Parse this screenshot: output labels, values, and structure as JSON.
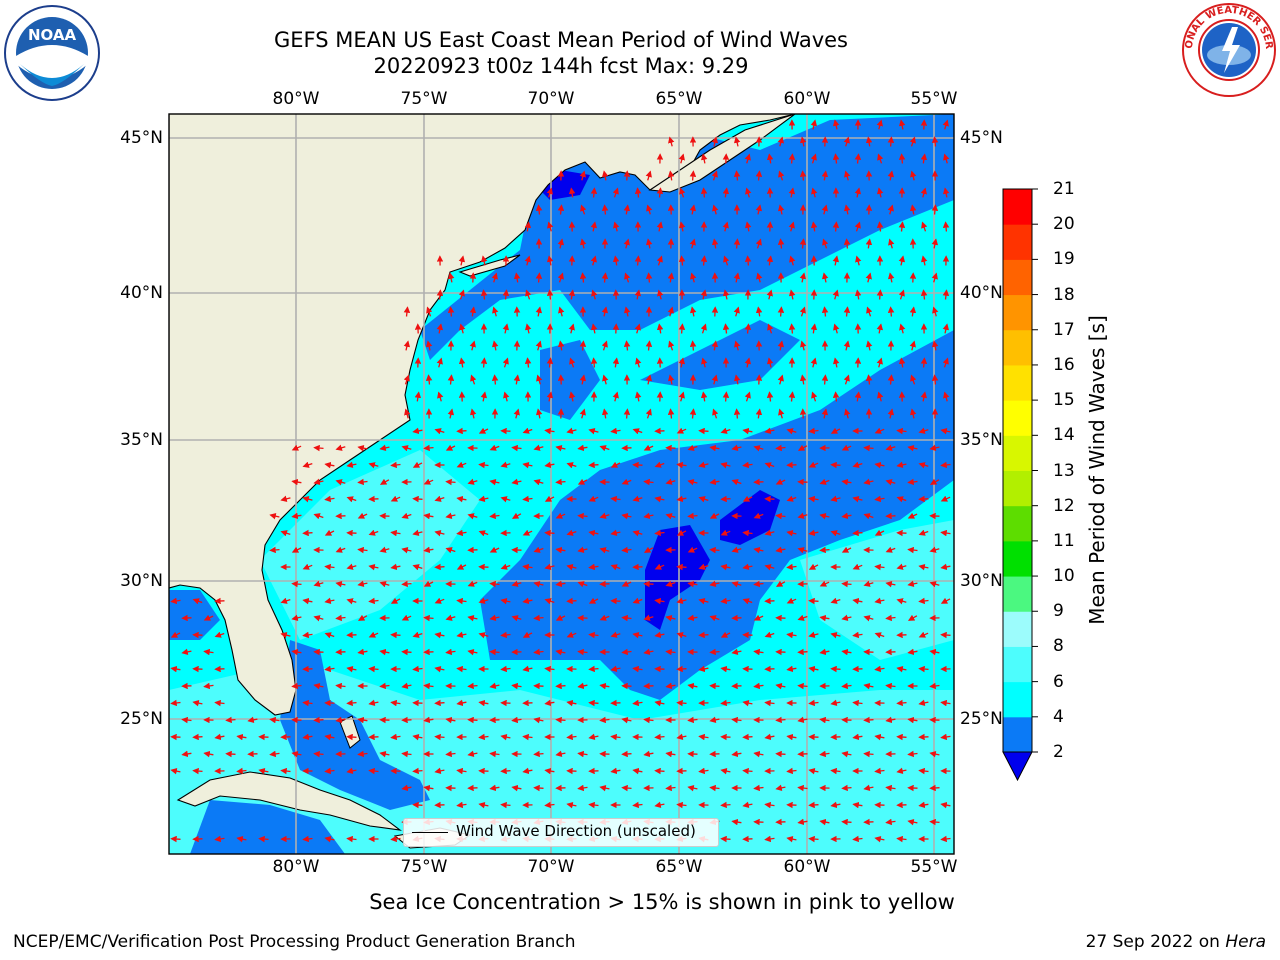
{
  "title": {
    "line1": "GEFS MEAN US East Coast Mean Period of Wind Waves",
    "line2": "20220923 t00z 144h fcst   Max: 9.29"
  },
  "axes": {
    "longitude_ticks": [
      "80°W",
      "75°W",
      "70°W",
      "65°W",
      "60°W",
      "55°W"
    ],
    "latitude_ticks": [
      "45°N",
      "40°N",
      "35°N",
      "30°N",
      "25°N"
    ]
  },
  "colorbar": {
    "label": "Mean Period of Wind Waves [s]",
    "ticks": [
      "2",
      "4",
      "6",
      "8",
      "9",
      "10",
      "11",
      "12",
      "13",
      "14",
      "15",
      "16",
      "17",
      "18",
      "19",
      "20",
      "21"
    ],
    "colors": [
      "#0000ee",
      "#0b7af6",
      "#00ffff",
      "#4dfdfd",
      "#9cfcfc",
      "#4bf880",
      "#00e000",
      "#5ddd00",
      "#b2ef00",
      "#d8f700",
      "#ffff00",
      "#ffe100",
      "#ffbf00",
      "#ff9400",
      "#ff6300",
      "#ff3300",
      "#ff0000"
    ]
  },
  "legend": {
    "text": "Wind Wave Direction (unscaled)"
  },
  "logos": {
    "noaa": "NOAA",
    "nws": "NATIONAL WEATHER SERVICE"
  },
  "notes": {
    "sea_ice": "Sea Ice Concentration > 15% is shown in pink to yellow",
    "footer_left": "NCEP/EMC/Verification Post Processing Product Generation Branch",
    "footer_date": "27 Sep 2022 on",
    "footer_machine": "Hera"
  },
  "map": {
    "extent": {
      "lon_min": -85,
      "lon_max": -54.3,
      "lat_min": 20.4,
      "lat_max": 45.8
    },
    "colors": {
      "land": "#efefdc",
      "grid": "#b0b0b0",
      "arrow": "#ee1111",
      "period_4_6": "#00ffff",
      "period_6_8": "#4dfdfd",
      "period_8_9": "#9cfcfc",
      "period_2_4": "#0b7af6",
      "period_below_2": "#0000ee"
    },
    "max_period": 9.29
  }
}
